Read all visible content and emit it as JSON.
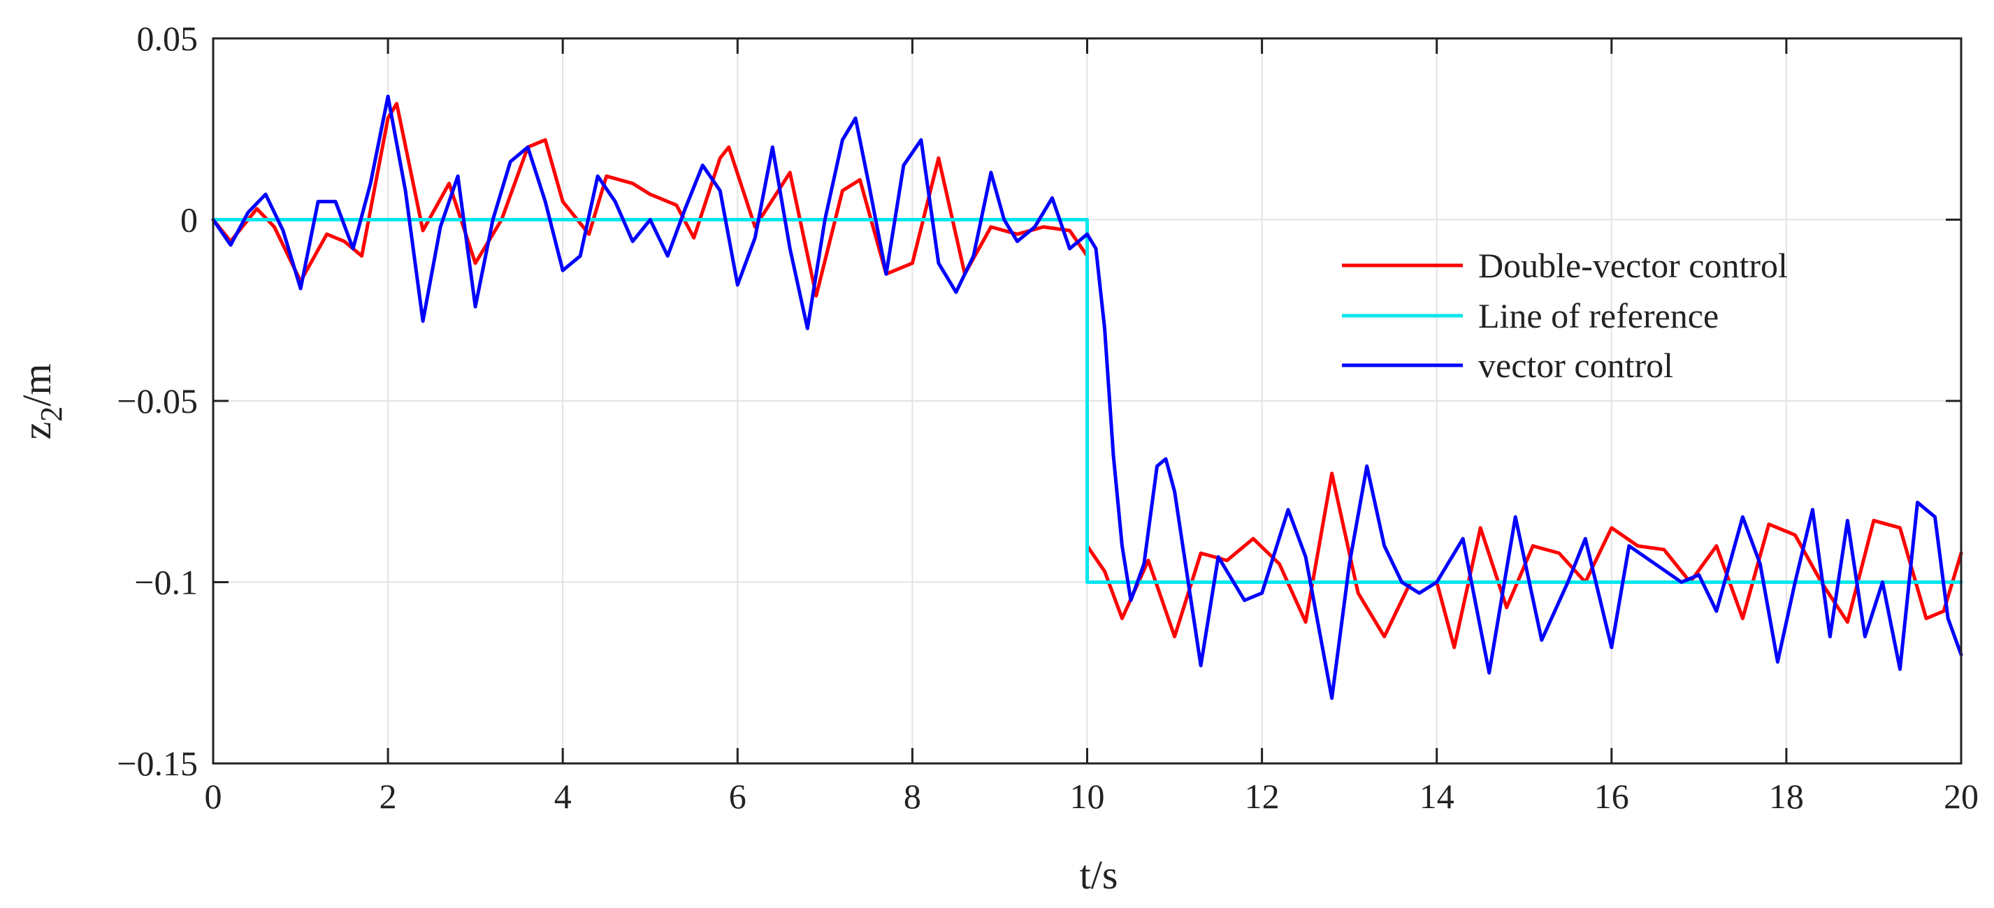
{
  "chart_data": {
    "type": "line",
    "title": "",
    "xlabel": "t/s",
    "ylabel": {
      "base": "z",
      "sub": "2",
      "rest": "/m"
    },
    "xlim": [
      0,
      20
    ],
    "ylim": [
      -0.15,
      0.05
    ],
    "xticks": [
      0,
      2,
      4,
      6,
      8,
      10,
      12,
      14,
      16,
      18,
      20
    ],
    "xtick_labels": [
      "0",
      "2",
      "4",
      "6",
      "8",
      "10",
      "12",
      "14",
      "16",
      "18",
      "20"
    ],
    "yticks": [
      0.05,
      0,
      -0.05,
      -0.1,
      -0.15
    ],
    "ytick_labels": [
      "0.05",
      "0",
      "−0.05",
      "−0.1",
      "−0.15"
    ],
    "grid": true,
    "legend_position": "right-center",
    "series": [
      {
        "name": "Double-vector control",
        "color": "#ff0000",
        "x": [
          0,
          0.2,
          0.5,
          0.7,
          1.0,
          1.3,
          1.5,
          1.7,
          2.0,
          2.1,
          2.4,
          2.7,
          3.0,
          3.3,
          3.6,
          3.8,
          4.0,
          4.3,
          4.5,
          4.8,
          5.0,
          5.3,
          5.5,
          5.8,
          5.9,
          6.2,
          6.6,
          6.9,
          7.2,
          7.4,
          7.7,
          8.0,
          8.3,
          8.6,
          8.9,
          9.2,
          9.5,
          9.8,
          10.0,
          10.0,
          10.2,
          10.4,
          10.7,
          11.0,
          11.3,
          11.6,
          11.9,
          12.2,
          12.5,
          12.8,
          13.1,
          13.4,
          13.7,
          14.0,
          14.2,
          14.5,
          14.8,
          15.1,
          15.4,
          15.7,
          16.0,
          16.3,
          16.6,
          16.9,
          17.2,
          17.5,
          17.8,
          18.1,
          18.4,
          18.7,
          19.0,
          19.3,
          19.6,
          19.8,
          20.0
        ],
        "y": [
          0,
          -0.006,
          0.003,
          -0.002,
          -0.017,
          -0.004,
          -0.006,
          -0.01,
          0.028,
          0.032,
          -0.003,
          0.01,
          -0.012,
          0.0,
          0.02,
          0.022,
          0.005,
          -0.004,
          0.012,
          0.01,
          0.007,
          0.004,
          -0.005,
          0.017,
          0.02,
          -0.002,
          0.013,
          -0.021,
          0.008,
          0.011,
          -0.015,
          -0.012,
          0.017,
          -0.015,
          -0.002,
          -0.004,
          -0.002,
          -0.003,
          -0.01,
          -0.09,
          -0.097,
          -0.11,
          -0.094,
          -0.115,
          -0.092,
          -0.094,
          -0.088,
          -0.095,
          -0.111,
          -0.07,
          -0.103,
          -0.115,
          -0.1,
          -0.1,
          -0.118,
          -0.085,
          -0.107,
          -0.09,
          -0.092,
          -0.1,
          -0.085,
          -0.09,
          -0.091,
          -0.1,
          -0.09,
          -0.11,
          -0.084,
          -0.087,
          -0.1,
          -0.111,
          -0.083,
          -0.085,
          -0.11,
          -0.108,
          -0.092
        ]
      },
      {
        "name": "Line of reference",
        "color": "#00e5ee",
        "x": [
          0,
          10,
          10,
          20
        ],
        "y": [
          0,
          0,
          -0.1,
          -0.1
        ]
      },
      {
        "name": "vector control",
        "color": "#0000ff",
        "x": [
          0,
          0.2,
          0.4,
          0.6,
          0.8,
          1.0,
          1.2,
          1.4,
          1.6,
          1.8,
          2.0,
          2.2,
          2.4,
          2.6,
          2.8,
          3.0,
          3.2,
          3.4,
          3.6,
          3.8,
          4.0,
          4.2,
          4.4,
          4.6,
          4.8,
          5.0,
          5.2,
          5.4,
          5.6,
          5.8,
          6.0,
          6.2,
          6.4,
          6.6,
          6.8,
          7.0,
          7.2,
          7.35,
          7.5,
          7.7,
          7.9,
          8.1,
          8.3,
          8.5,
          8.7,
          8.9,
          9.05,
          9.2,
          9.4,
          9.6,
          9.8,
          10.0,
          10.1,
          10.2,
          10.3,
          10.4,
          10.5,
          10.65,
          10.8,
          10.9,
          11.0,
          11.3,
          11.5,
          11.8,
          12.0,
          12.3,
          12.5,
          12.8,
          13.0,
          13.2,
          13.4,
          13.6,
          13.8,
          14.0,
          14.3,
          14.6,
          14.9,
          15.2,
          15.5,
          15.7,
          16.0,
          16.2,
          16.5,
          16.8,
          17.0,
          17.2,
          17.5,
          17.7,
          17.9,
          18.1,
          18.3,
          18.5,
          18.7,
          18.9,
          19.1,
          19.3,
          19.5,
          19.7,
          19.85,
          20.0
        ],
        "y": [
          0,
          -0.007,
          0.002,
          0.007,
          -0.003,
          -0.019,
          0.005,
          0.005,
          -0.008,
          0.01,
          0.034,
          0.008,
          -0.028,
          -0.002,
          0.012,
          -0.024,
          0.0,
          0.016,
          0.02,
          0.005,
          -0.014,
          -0.01,
          0.012,
          0.005,
          -0.006,
          0.0,
          -0.01,
          0.003,
          0.015,
          0.008,
          -0.018,
          -0.005,
          0.02,
          -0.008,
          -0.03,
          0.0,
          0.022,
          0.028,
          0.01,
          -0.015,
          0.015,
          0.022,
          -0.012,
          -0.02,
          -0.01,
          0.013,
          0.0,
          -0.006,
          -0.002,
          0.006,
          -0.008,
          -0.004,
          -0.008,
          -0.03,
          -0.065,
          -0.09,
          -0.105,
          -0.095,
          -0.068,
          -0.066,
          -0.075,
          -0.123,
          -0.093,
          -0.105,
          -0.103,
          -0.08,
          -0.093,
          -0.132,
          -0.095,
          -0.068,
          -0.09,
          -0.1,
          -0.103,
          -0.1,
          -0.088,
          -0.125,
          -0.082,
          -0.116,
          -0.1,
          -0.088,
          -0.118,
          -0.09,
          -0.095,
          -0.1,
          -0.098,
          -0.108,
          -0.082,
          -0.095,
          -0.122,
          -0.1,
          -0.08,
          -0.115,
          -0.083,
          -0.115,
          -0.1,
          -0.124,
          -0.078,
          -0.082,
          -0.11,
          -0.12
        ]
      }
    ]
  }
}
